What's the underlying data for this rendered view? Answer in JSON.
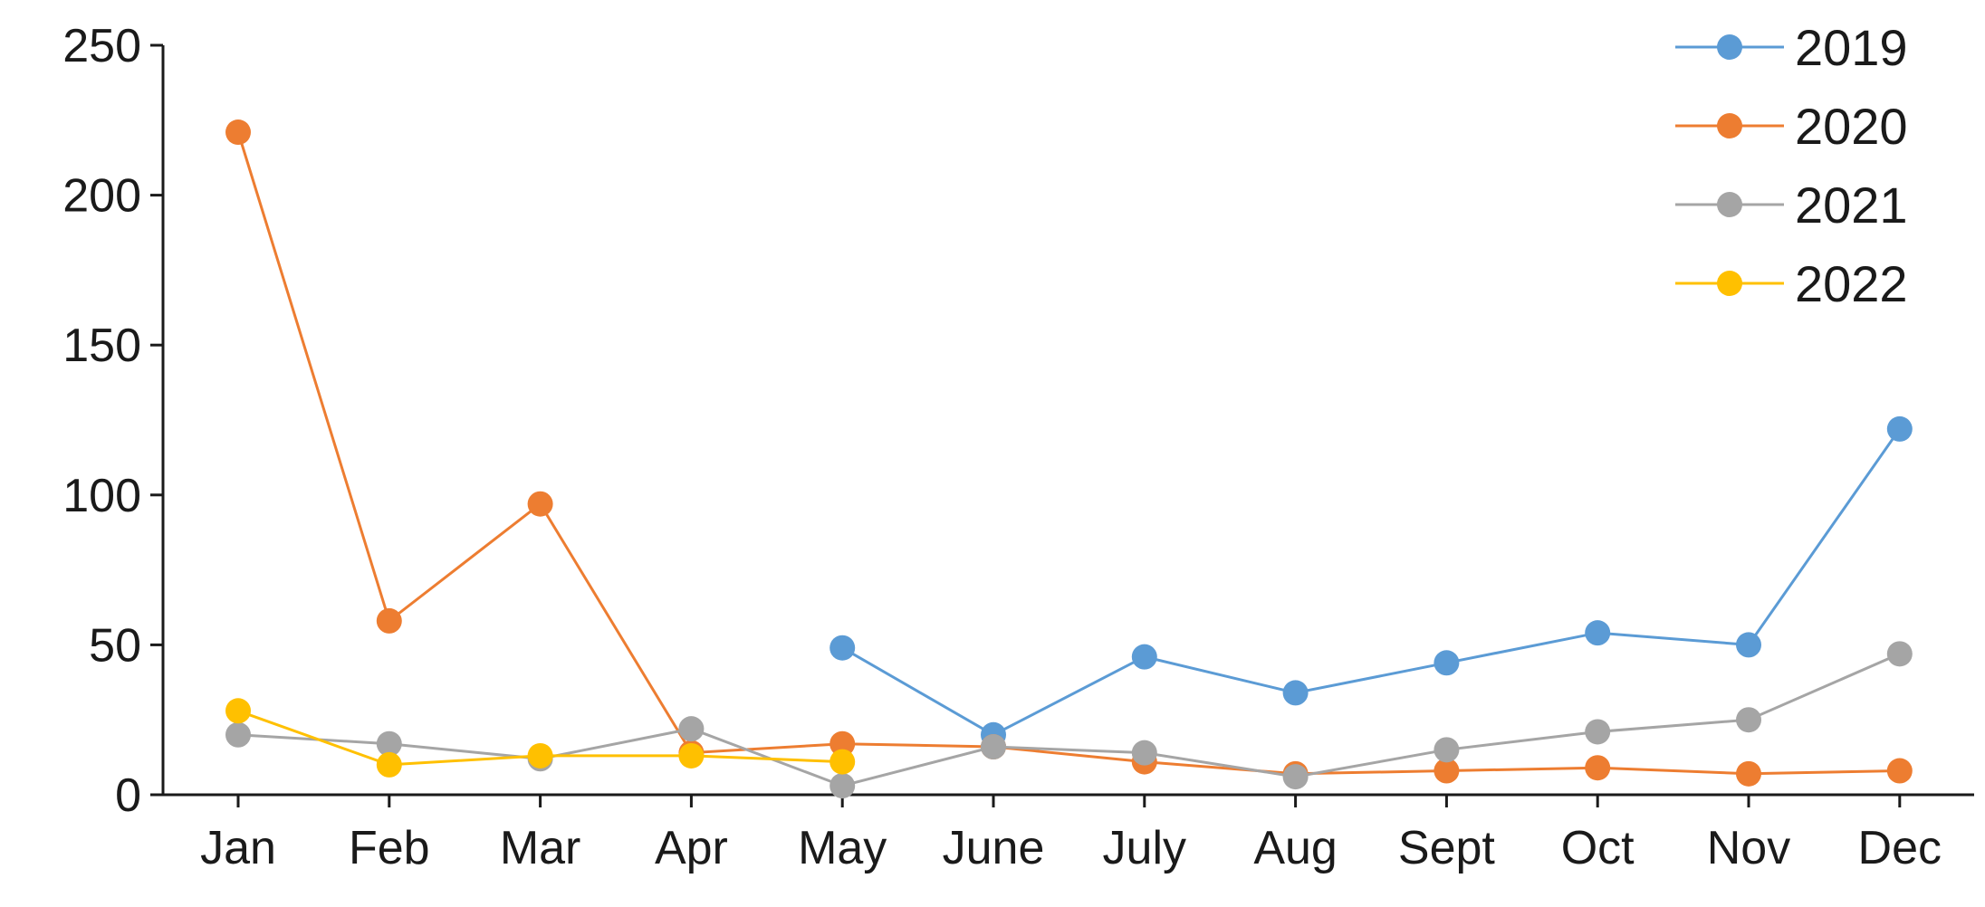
{
  "chart_data": {
    "type": "line",
    "title": "",
    "xlabel": "",
    "ylabel": "",
    "categories": [
      "Jan",
      "Feb",
      "Mar",
      "Apr",
      "May",
      "June",
      "July",
      "Aug",
      "Sept",
      "Oct",
      "Nov",
      "Dec"
    ],
    "ylim": [
      0,
      250
    ],
    "yticks": [
      0,
      50,
      100,
      150,
      200,
      250
    ],
    "grid": false,
    "legend_position": "top-right",
    "series": [
      {
        "name": "2019",
        "color": "#5b9bd5",
        "values": [
          null,
          null,
          null,
          null,
          49,
          20,
          46,
          34,
          44,
          54,
          50,
          122
        ]
      },
      {
        "name": "2020",
        "color": "#ed7d31",
        "values": [
          221,
          58,
          97,
          14,
          17,
          16,
          11,
          7,
          8,
          9,
          7,
          8
        ]
      },
      {
        "name": "2021",
        "color": "#a5a5a5",
        "values": [
          20,
          17,
          12,
          22,
          3,
          16,
          14,
          6,
          15,
          21,
          25,
          47
        ]
      },
      {
        "name": "2022",
        "color": "#ffc000",
        "values": [
          28,
          10,
          13,
          13,
          11,
          null,
          null,
          null,
          null,
          null,
          null,
          null
        ]
      }
    ]
  }
}
